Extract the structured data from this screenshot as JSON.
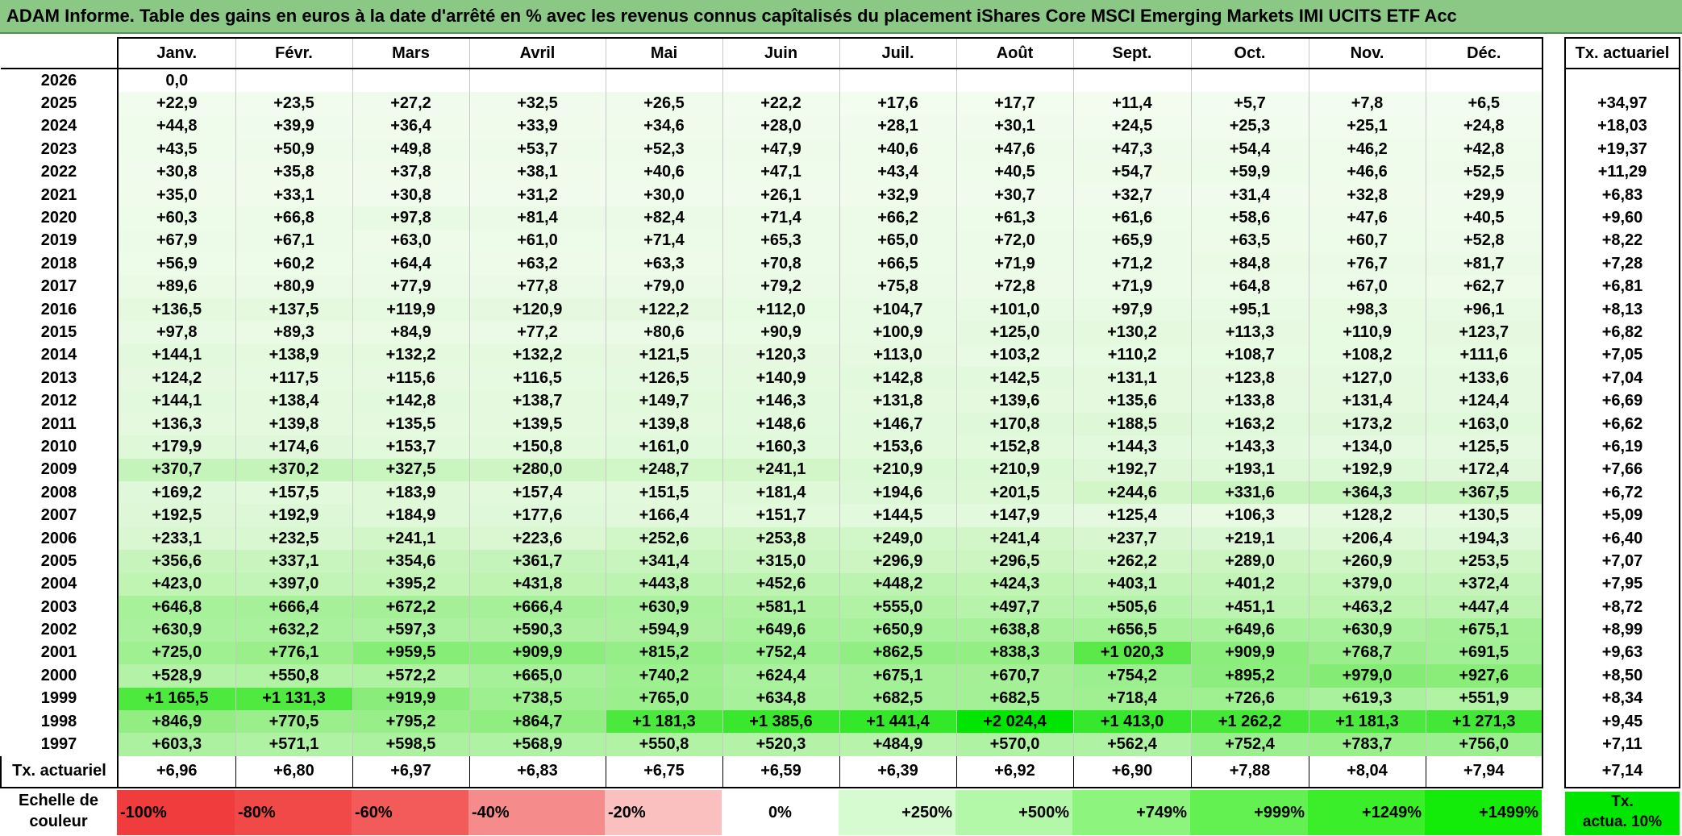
{
  "title": "ADAM Informe. Table des gains en euros à la date d'arrêté en % avec les revenus connus capîtalisés du placement iShares Core MSCI Emerging Markets IMI UCITS ETF Acc",
  "months": [
    "Janv.",
    "Févr.",
    "Mars",
    "Avril",
    "Mai",
    "Juin",
    "Juil.",
    "Août",
    "Sept.",
    "Oct.",
    "Nov.",
    "Déc."
  ],
  "tx_header": "Tx. actuariel",
  "rows": [
    {
      "year": "2026",
      "values": [
        "0,0",
        "",
        "",
        "",
        "",
        "",
        "",
        "",
        "",
        "",
        "",
        ""
      ],
      "tx": ""
    },
    {
      "year": "2025",
      "values": [
        "+22,9",
        "+23,5",
        "+27,2",
        "+32,5",
        "+26,5",
        "+22,2",
        "+17,6",
        "+17,7",
        "+11,4",
        "+5,7",
        "+7,8",
        "+6,5"
      ],
      "tx": "+34,97"
    },
    {
      "year": "2024",
      "values": [
        "+44,8",
        "+39,9",
        "+36,4",
        "+33,9",
        "+34,6",
        "+28,0",
        "+28,1",
        "+30,1",
        "+24,5",
        "+25,3",
        "+25,1",
        "+24,8"
      ],
      "tx": "+18,03"
    },
    {
      "year": "2023",
      "values": [
        "+43,5",
        "+50,9",
        "+49,8",
        "+53,7",
        "+52,3",
        "+47,9",
        "+40,6",
        "+47,6",
        "+47,3",
        "+54,4",
        "+46,2",
        "+42,8"
      ],
      "tx": "+19,37"
    },
    {
      "year": "2022",
      "values": [
        "+30,8",
        "+35,8",
        "+37,8",
        "+38,1",
        "+40,6",
        "+47,1",
        "+43,4",
        "+40,5",
        "+54,7",
        "+59,9",
        "+46,6",
        "+52,5"
      ],
      "tx": "+11,29"
    },
    {
      "year": "2021",
      "values": [
        "+35,0",
        "+33,1",
        "+30,8",
        "+31,2",
        "+30,0",
        "+26,1",
        "+32,9",
        "+30,7",
        "+32,7",
        "+31,4",
        "+32,8",
        "+29,9"
      ],
      "tx": "+6,83"
    },
    {
      "year": "2020",
      "values": [
        "+60,3",
        "+66,8",
        "+97,8",
        "+81,4",
        "+82,4",
        "+71,4",
        "+66,2",
        "+61,3",
        "+61,6",
        "+58,6",
        "+47,6",
        "+40,5"
      ],
      "tx": "+9,60"
    },
    {
      "year": "2019",
      "values": [
        "+67,9",
        "+67,1",
        "+63,0",
        "+61,0",
        "+71,4",
        "+65,3",
        "+65,0",
        "+72,0",
        "+65,9",
        "+63,5",
        "+60,7",
        "+52,8"
      ],
      "tx": "+8,22"
    },
    {
      "year": "2018",
      "values": [
        "+56,9",
        "+60,2",
        "+64,4",
        "+63,2",
        "+63,3",
        "+70,8",
        "+66,5",
        "+71,9",
        "+71,2",
        "+84,8",
        "+76,7",
        "+81,7"
      ],
      "tx": "+7,28"
    },
    {
      "year": "2017",
      "values": [
        "+89,6",
        "+80,9",
        "+77,9",
        "+77,8",
        "+79,0",
        "+79,2",
        "+75,8",
        "+72,8",
        "+71,9",
        "+64,8",
        "+67,0",
        "+62,7"
      ],
      "tx": "+6,81"
    },
    {
      "year": "2016",
      "values": [
        "+136,5",
        "+137,5",
        "+119,9",
        "+120,9",
        "+122,2",
        "+112,0",
        "+104,7",
        "+101,0",
        "+97,9",
        "+95,1",
        "+98,3",
        "+96,1"
      ],
      "tx": "+8,13"
    },
    {
      "year": "2015",
      "values": [
        "+97,8",
        "+89,3",
        "+84,9",
        "+77,2",
        "+80,6",
        "+90,9",
        "+100,9",
        "+125,0",
        "+130,2",
        "+113,3",
        "+110,9",
        "+123,7"
      ],
      "tx": "+6,82"
    },
    {
      "year": "2014",
      "values": [
        "+144,1",
        "+138,9",
        "+132,2",
        "+132,2",
        "+121,5",
        "+120,3",
        "+113,0",
        "+103,2",
        "+110,2",
        "+108,7",
        "+108,2",
        "+111,6"
      ],
      "tx": "+7,05"
    },
    {
      "year": "2013",
      "values": [
        "+124,2",
        "+117,5",
        "+115,6",
        "+116,5",
        "+126,5",
        "+140,9",
        "+142,8",
        "+142,5",
        "+131,1",
        "+123,8",
        "+127,0",
        "+133,6"
      ],
      "tx": "+7,04"
    },
    {
      "year": "2012",
      "values": [
        "+144,1",
        "+138,4",
        "+142,8",
        "+138,7",
        "+149,7",
        "+146,3",
        "+131,8",
        "+139,6",
        "+135,6",
        "+133,8",
        "+131,4",
        "+124,4"
      ],
      "tx": "+6,69"
    },
    {
      "year": "2011",
      "values": [
        "+136,3",
        "+139,8",
        "+135,5",
        "+139,5",
        "+139,8",
        "+148,6",
        "+146,7",
        "+170,8",
        "+188,5",
        "+163,2",
        "+173,2",
        "+163,0"
      ],
      "tx": "+6,62"
    },
    {
      "year": "2010",
      "values": [
        "+179,9",
        "+174,6",
        "+153,7",
        "+150,8",
        "+161,0",
        "+160,3",
        "+153,6",
        "+152,8",
        "+144,3",
        "+143,3",
        "+134,0",
        "+125,5"
      ],
      "tx": "+6,19"
    },
    {
      "year": "2009",
      "values": [
        "+370,7",
        "+370,2",
        "+327,5",
        "+280,0",
        "+248,7",
        "+241,1",
        "+210,9",
        "+210,9",
        "+192,7",
        "+193,1",
        "+192,9",
        "+172,4"
      ],
      "tx": "+7,66"
    },
    {
      "year": "2008",
      "values": [
        "+169,2",
        "+157,5",
        "+183,9",
        "+157,4",
        "+151,5",
        "+181,4",
        "+194,6",
        "+201,5",
        "+244,6",
        "+331,6",
        "+364,3",
        "+367,5"
      ],
      "tx": "+6,72"
    },
    {
      "year": "2007",
      "values": [
        "+192,5",
        "+192,9",
        "+184,9",
        "+177,6",
        "+166,4",
        "+151,7",
        "+144,5",
        "+147,9",
        "+125,4",
        "+106,3",
        "+128,2",
        "+130,5"
      ],
      "tx": "+5,09"
    },
    {
      "year": "2006",
      "values": [
        "+233,1",
        "+232,5",
        "+241,1",
        "+223,6",
        "+252,6",
        "+253,8",
        "+249,0",
        "+241,4",
        "+237,7",
        "+219,1",
        "+206,4",
        "+194,3"
      ],
      "tx": "+6,40"
    },
    {
      "year": "2005",
      "values": [
        "+356,6",
        "+337,1",
        "+354,6",
        "+361,7",
        "+341,4",
        "+315,0",
        "+296,9",
        "+296,5",
        "+262,2",
        "+289,0",
        "+260,9",
        "+253,5"
      ],
      "tx": "+7,07"
    },
    {
      "year": "2004",
      "values": [
        "+423,0",
        "+397,0",
        "+395,2",
        "+431,8",
        "+443,8",
        "+452,6",
        "+448,2",
        "+424,3",
        "+403,1",
        "+401,2",
        "+379,0",
        "+372,4"
      ],
      "tx": "+7,95"
    },
    {
      "year": "2003",
      "values": [
        "+646,8",
        "+666,4",
        "+672,2",
        "+666,4",
        "+630,9",
        "+581,1",
        "+555,0",
        "+497,7",
        "+505,6",
        "+451,1",
        "+463,2",
        "+447,4"
      ],
      "tx": "+8,72"
    },
    {
      "year": "2002",
      "values": [
        "+630,9",
        "+632,2",
        "+597,3",
        "+590,3",
        "+594,9",
        "+649,6",
        "+650,9",
        "+638,8",
        "+656,5",
        "+649,6",
        "+630,9",
        "+675,1"
      ],
      "tx": "+8,99"
    },
    {
      "year": "2001",
      "values": [
        "+725,0",
        "+776,1",
        "+959,5",
        "+909,9",
        "+815,2",
        "+752,4",
        "+862,5",
        "+838,3",
        "+1 020,3",
        "+909,9",
        "+768,7",
        "+691,5"
      ],
      "tx": "+9,63"
    },
    {
      "year": "2000",
      "values": [
        "+528,9",
        "+550,8",
        "+572,2",
        "+665,0",
        "+740,2",
        "+624,4",
        "+675,1",
        "+670,7",
        "+754,2",
        "+895,2",
        "+979,0",
        "+927,6"
      ],
      "tx": "+8,50"
    },
    {
      "year": "1999",
      "values": [
        "+1 165,5",
        "+1 131,3",
        "+919,9",
        "+738,5",
        "+765,0",
        "+634,8",
        "+682,5",
        "+682,5",
        "+718,4",
        "+726,6",
        "+619,3",
        "+551,9"
      ],
      "tx": "+8,34"
    },
    {
      "year": "1998",
      "values": [
        "+846,9",
        "+770,5",
        "+795,2",
        "+864,7",
        "+1 181,3",
        "+1 385,6",
        "+1 441,4",
        "+2 024,4",
        "+1 413,0",
        "+1 262,2",
        "+1 181,3",
        "+1 271,3"
      ],
      "tx": "+9,45"
    },
    {
      "year": "1997",
      "values": [
        "+603,3",
        "+571,1",
        "+598,5",
        "+568,9",
        "+550,8",
        "+520,3",
        "+484,9",
        "+570,0",
        "+562,4",
        "+752,4",
        "+783,7",
        "+756,0"
      ],
      "tx": "+7,11"
    }
  ],
  "footer": {
    "label": "Tx. actuariel",
    "values": [
      "+6,96",
      "+6,80",
      "+6,97",
      "+6,83",
      "+6,75",
      "+6,59",
      "+6,39",
      "+6,92",
      "+6,90",
      "+7,88",
      "+8,04",
      "+7,94"
    ],
    "tx": "+7,14"
  },
  "legend": {
    "label_line1": "Echelle de",
    "label_line2": "couleur",
    "items": [
      {
        "text": "-100%",
        "color": "#f03c3c",
        "align": "l"
      },
      {
        "text": "-80%",
        "color": "#f14848",
        "align": "l"
      },
      {
        "text": "-60%",
        "color": "#f35a5a",
        "align": "l"
      },
      {
        "text": "-40%",
        "color": "#f68b8b",
        "align": "l"
      },
      {
        "text": "-20%",
        "color": "#fac0c0",
        "align": "l"
      },
      {
        "text": "0%",
        "color": "#ffffff",
        "align": "c"
      },
      {
        "text": "+250%",
        "color": "#d6fbd0",
        "align": "r"
      },
      {
        "text": "+500%",
        "color": "#b3f7a8",
        "align": "r"
      },
      {
        "text": "+749%",
        "color": "#8df47e",
        "align": "r"
      },
      {
        "text": "+999%",
        "color": "#63f152",
        "align": "r"
      },
      {
        "text": "+1249%",
        "color": "#3aee2a",
        "align": "r"
      },
      {
        "text": "+1499%",
        "color": "#13eb08",
        "align": "r"
      }
    ],
    "tx_box_line1": "Tx.",
    "tx_box_line2": "actua. 10%",
    "tx_box_color": "#00e600"
  }
}
